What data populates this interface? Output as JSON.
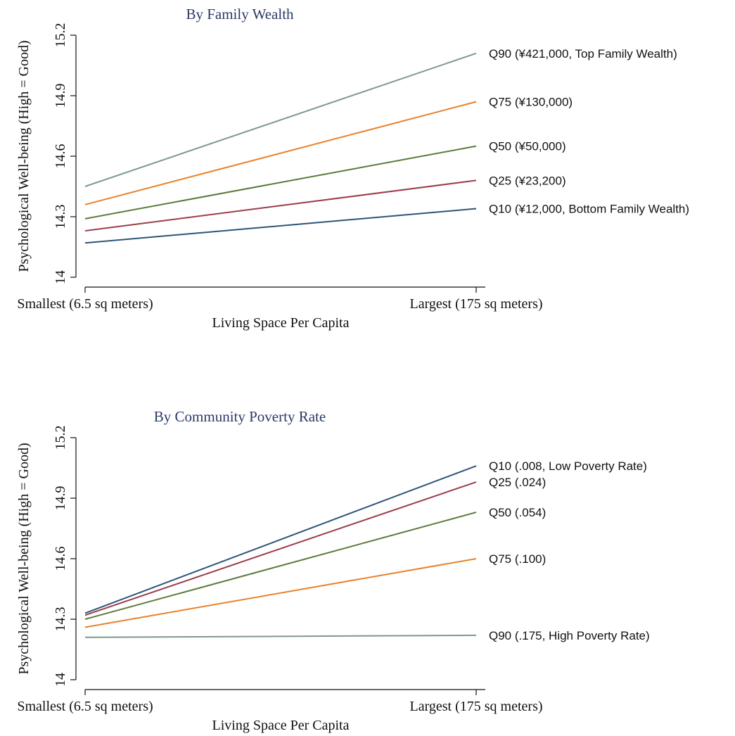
{
  "chart_data": [
    {
      "type": "line",
      "title": "By Family Wealth",
      "xlabel": "Living Space Per Capita",
      "ylabel": "Psychological Well-being (High = Good)",
      "categories": [
        "Smallest (6.5 sq meters)",
        "Largest (175 sq meters)"
      ],
      "yticks": [
        "14",
        "14.3",
        "14.6",
        "14.9",
        "15.2"
      ],
      "ylim": [
        14,
        15.2
      ],
      "grid": false,
      "legend": "direct labels at line ends",
      "series": [
        {
          "name": "Q90 (¥421,000, Top Family Wealth)",
          "values": [
            14.45,
            15.11
          ],
          "color": "#7c9a8a"
        },
        {
          "name": "Q75 (¥130,000)",
          "values": [
            14.36,
            14.87
          ],
          "color": "#e8822b"
        },
        {
          "name": "Q50 (¥50,000)",
          "values": [
            14.29,
            14.65
          ],
          "color": "#5b7a3a"
        },
        {
          "name": "Q25 (¥23,200)",
          "values": [
            14.23,
            14.48
          ],
          "color": "#9b3d4a"
        },
        {
          "name": "Q10 (¥12,000, Bottom Family Wealth)",
          "values": [
            14.17,
            14.34
          ],
          "color": "#2d5478"
        }
      ]
    },
    {
      "type": "line",
      "title": "By Community Poverty Rate",
      "xlabel": "Living Space Per Capita",
      "ylabel": "Psychological Well-being (High = Good)",
      "categories": [
        "Smallest (6.5 sq meters)",
        "Largest (175 sq meters)"
      ],
      "yticks": [
        "14",
        "14.3",
        "14.6",
        "14.9",
        "15.2"
      ],
      "ylim": [
        14,
        15.2
      ],
      "grid": false,
      "legend": "direct labels at line ends",
      "series": [
        {
          "name": "Q10 (.008, Low Poverty Rate)",
          "values": [
            14.33,
            15.06
          ],
          "color": "#2d5478"
        },
        {
          "name": "Q25 (.024)",
          "values": [
            14.32,
            14.98
          ],
          "color": "#9b3d4a"
        },
        {
          "name": "Q50 (.054)",
          "values": [
            14.3,
            14.83
          ],
          "color": "#5b7a3a"
        },
        {
          "name": "Q75 (.100)",
          "values": [
            14.26,
            14.6
          ],
          "color": "#e8822b"
        },
        {
          "name": "Q90 (.175, High Poverty Rate)",
          "values": [
            14.21,
            14.22
          ],
          "color": "#7c9a8a"
        }
      ]
    }
  ]
}
